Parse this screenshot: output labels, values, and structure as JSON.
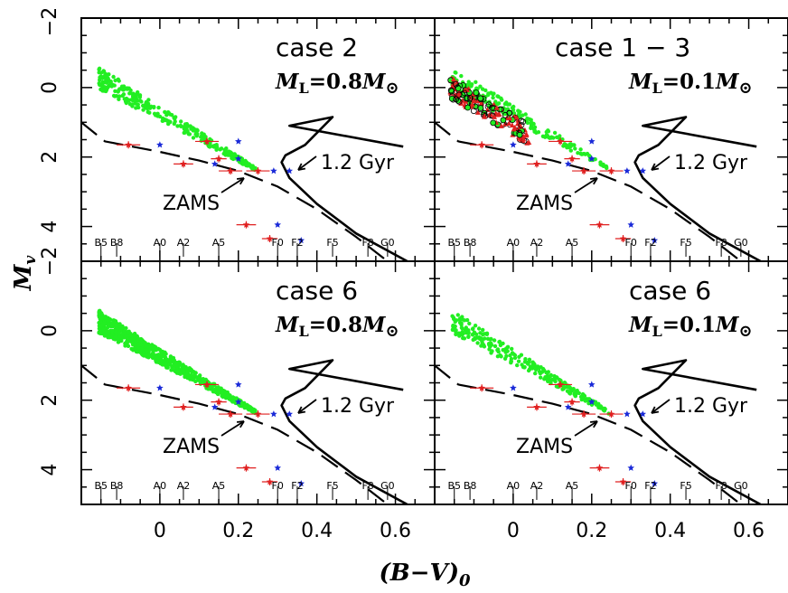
{
  "figure": {
    "ylabel_main": "M",
    "ylabel_sub": "v",
    "xlabel": "(B−V)",
    "xlabel_sub": "0",
    "x_ticks": [
      "0",
      "0.2",
      "0.4",
      "0.6"
    ],
    "y_ticks": [
      "0",
      "2",
      "4"
    ],
    "y_top_label": "−2",
    "y_mid_label": "−2"
  },
  "colors": {
    "model_stars": "#22ee22",
    "observed_cluster": "#e02020",
    "blue_stars": "#1a2ad8",
    "theory_lines": "#000000"
  },
  "chart_data": [
    {
      "type": "scatter",
      "case_label": "case 2",
      "mass_label_M": "M",
      "mass_label_sub": "L",
      "mass_label_value": "=0.8",
      "mass_label_sun": "⊙",
      "isochrone_label": "1.2 Gyr",
      "zams_label": "ZAMS",
      "spectral_types": [
        "B5",
        "B8",
        "A0",
        "A2",
        "A5",
        "F0",
        "F2",
        "F5",
        "F8",
        "G0"
      ],
      "xlim": [
        -0.2,
        0.7
      ],
      "ylim": [
        5,
        -2
      ],
      "model_density": "medium"
    },
    {
      "type": "scatter",
      "case_label": "case 1 − 3",
      "mass_label_M": "M",
      "mass_label_sub": "L",
      "mass_label_value": "=0.1",
      "mass_label_sun": "⊙",
      "isochrone_label": "1.2 Gyr",
      "zams_label": "ZAMS",
      "spectral_types": [
        "B5",
        "B8",
        "A0",
        "A2",
        "A5",
        "F0",
        "F2",
        "F5",
        "F8",
        "G0"
      ],
      "xlim": [
        -0.2,
        0.7
      ],
      "ylim": [
        5,
        -2
      ],
      "model_density": "mixed"
    },
    {
      "type": "scatter",
      "case_label": "case 6",
      "mass_label_M": "M",
      "mass_label_sub": "L",
      "mass_label_value": "=0.8",
      "mass_label_sun": "⊙",
      "isochrone_label": "1.2 Gyr",
      "zams_label": "ZAMS",
      "spectral_types": [
        "B5",
        "B8",
        "A0",
        "A2",
        "A5",
        "F0",
        "F2",
        "F5",
        "F8",
        "G0"
      ],
      "xlim": [
        -0.2,
        0.7
      ],
      "ylim": [
        5,
        -2
      ],
      "model_density": "high"
    },
    {
      "type": "scatter",
      "case_label": "case 6",
      "mass_label_M": "M",
      "mass_label_sub": "L",
      "mass_label_value": "=0.1",
      "mass_label_sun": "⊙",
      "isochrone_label": "1.2 Gyr",
      "zams_label": "ZAMS",
      "spectral_types": [
        "B5",
        "B8",
        "A0",
        "A2",
        "A5",
        "F0",
        "F2",
        "F5",
        "F8",
        "G0"
      ],
      "xlim": [
        -0.2,
        0.7
      ],
      "ylim": [
        5,
        -2
      ],
      "model_density": "low"
    }
  ],
  "spectral_type_colors": [
    -0.15,
    -0.11,
    0.0,
    0.06,
    0.15,
    0.3,
    0.35,
    0.44,
    0.53,
    0.58
  ],
  "observed_points": [
    {
      "x": -0.08,
      "y": 1.65,
      "xerr": 0.03
    },
    {
      "x": 0.06,
      "y": 2.2,
      "xerr": 0.025
    },
    {
      "x": 0.12,
      "y": 1.55,
      "xerr": 0.03
    },
    {
      "x": 0.18,
      "y": 2.4,
      "xerr": 0.03
    },
    {
      "x": 0.25,
      "y": 2.4,
      "xerr": 0.03
    },
    {
      "x": 0.22,
      "y": 3.95,
      "xerr": 0.025
    },
    {
      "x": 0.28,
      "y": 4.35,
      "xerr": 0.02
    },
    {
      "x": 0.15,
      "y": 2.05,
      "xerr": 0.02
    }
  ],
  "blue_points": [
    {
      "x": 0.0,
      "y": 1.65
    },
    {
      "x": 0.14,
      "y": 2.2
    },
    {
      "x": 0.2,
      "y": 1.55
    },
    {
      "x": 0.2,
      "y": 2.05
    },
    {
      "x": 0.29,
      "y": 2.4
    },
    {
      "x": 0.33,
      "y": 2.4
    },
    {
      "x": 0.3,
      "y": 3.95
    },
    {
      "x": 0.36,
      "y": 4.4
    }
  ],
  "zams_curve": [
    [
      -0.2,
      1.0
    ],
    [
      -0.14,
      1.55
    ],
    [
      -0.07,
      1.7
    ],
    [
      0.0,
      1.85
    ],
    [
      0.1,
      2.1
    ],
    [
      0.2,
      2.4
    ],
    [
      0.3,
      2.85
    ],
    [
      0.4,
      3.5
    ],
    [
      0.5,
      4.3
    ],
    [
      0.58,
      5.0
    ]
  ],
  "isochrone_curve": [
    [
      0.62,
      1.7
    ],
    [
      0.33,
      1.1
    ],
    [
      0.44,
      0.85
    ],
    [
      0.37,
      1.65
    ],
    [
      0.32,
      1.95
    ],
    [
      0.31,
      2.15
    ],
    [
      0.33,
      2.6
    ],
    [
      0.4,
      3.35
    ],
    [
      0.5,
      4.2
    ],
    [
      0.63,
      5.0
    ]
  ]
}
